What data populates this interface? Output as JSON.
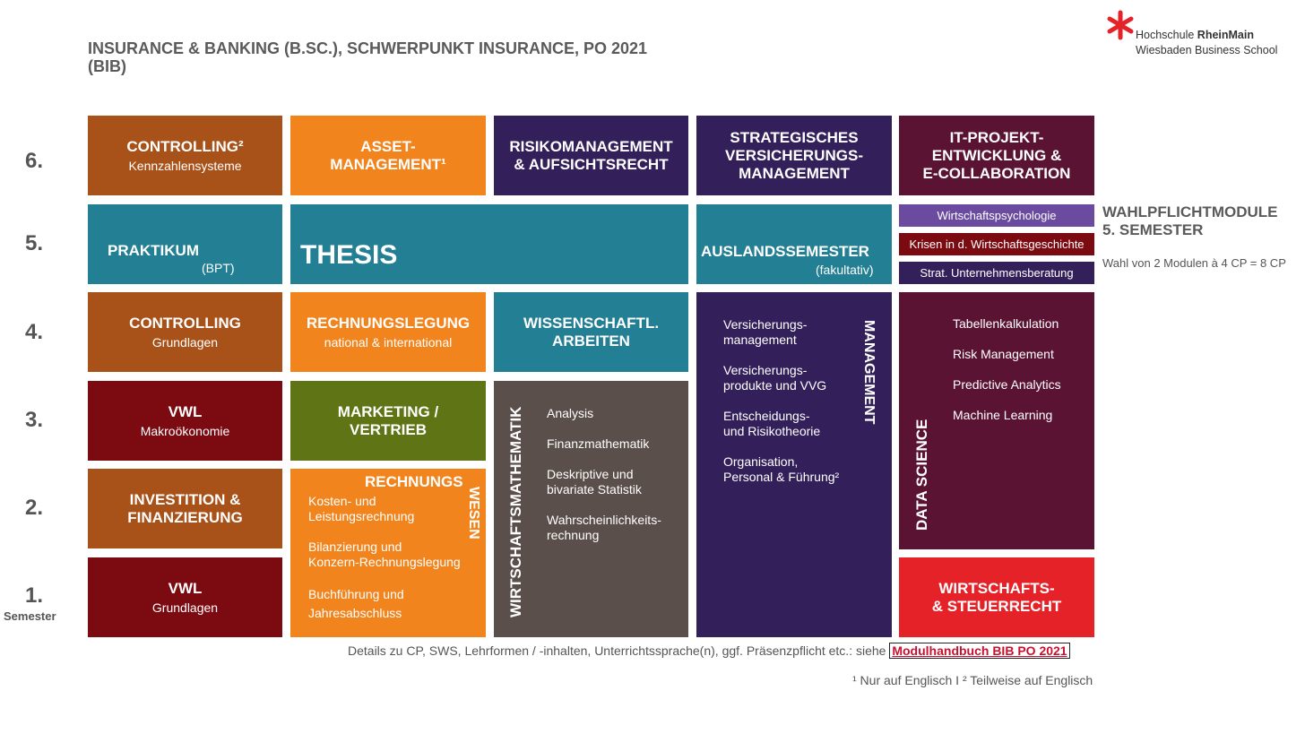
{
  "header": {
    "title_line1": "INSURANCE & BANKING (B.SC.), SCHWERPUNKT INSURANCE, PO 2021",
    "title_line2": "(BIB)",
    "logo_line1_a": "Hochschule ",
    "logo_line1_b": "RheinMain",
    "logo_line2": "Wiesbaden Business School"
  },
  "semesters": [
    "6.",
    "5.",
    "4.",
    "3.",
    "2.",
    "1."
  ],
  "semester_word": "Semester",
  "modules": {
    "controlling6": {
      "title": "CONTROLLING²",
      "sub": "Kennzahlensysteme"
    },
    "asset": {
      "title1": "ASSET-",
      "title2": "MANAGEMENT¹"
    },
    "risiko": {
      "title1": "RISIKOMANAGEMENT",
      "title2": "& AUFSICHTSRECHT"
    },
    "strat": {
      "title1": "STRATEGISCHES",
      "title2": "VERSICHERUNGS-",
      "title3": "MANAGEMENT"
    },
    "it": {
      "title1": "IT-PROJEKT-",
      "title2": "ENTWICKLUNG &",
      "title3": "E-COLLABORATION"
    },
    "praktikum": {
      "title": "PRAKTIKUM",
      "sub": "(BPT)"
    },
    "thesis": {
      "title": "THESIS"
    },
    "ausland": {
      "title": "AUSLANDSSEMESTER",
      "sub": "(fakultativ)"
    },
    "controlling4": {
      "title": "CONTROLLING",
      "sub": "Grundlagen"
    },
    "rechnungslegung": {
      "title": "RECHNUNGSLEGUNG",
      "sub": "national & international"
    },
    "wiss": {
      "title1": "WISSENSCHAFTL.",
      "title2": "ARBEITEN"
    },
    "vwl3": {
      "title": "VWL",
      "sub": "Makroökonomie"
    },
    "marketing": {
      "title1": "MARKETING /",
      "title2": "VERTRIEB"
    },
    "invest": {
      "title1": "INVESTITION &",
      "title2": "FINANZIERUNG"
    },
    "vwl1": {
      "title": "VWL",
      "sub": "Grundlagen"
    },
    "wirtschaftsrecht": {
      "title1": "WIRTSCHAFTS-",
      "title2": "& STEUERRECHT"
    },
    "rechnungswesen": {
      "title_a": "RECHNUNGS",
      "title_b": "WESEN",
      "items": [
        "Kosten- und",
        "Leistungsrechnung",
        "Bilanzierung und",
        "Konzern-Rechnungslegung",
        "Buchführung und",
        "Jahresabschluss"
      ]
    },
    "wima": {
      "title": "WIRTSCHAFTSMATHEMATIK",
      "items": [
        "Analysis",
        "Finanzmathematik",
        "Deskriptive und",
        "bivariate Statistik",
        "Wahrscheinlichkeits-",
        "rechnung"
      ]
    },
    "management": {
      "title": "MANAGEMENT",
      "items": [
        "Versicherungs-",
        "management",
        "Versicherungs-",
        "produkte und VVG",
        "Entscheidungs-",
        "und Risikotheorie",
        "Organisation,",
        "Personal & Führung²"
      ]
    },
    "datascience": {
      "title": "DATA SCIENCE",
      "items": [
        "Tabellenkalkulation",
        "Risk Management",
        "Predictive Analytics",
        "Machine Learning"
      ]
    }
  },
  "wahlpflicht": {
    "items": [
      "Wirtschaftspsychologie",
      "Krisen in d. Wirtschaftsgeschichte",
      "Strat. Unternehmensberatung"
    ],
    "colors": [
      "#6a4ba0",
      "#7b0a11",
      "#33205a"
    ],
    "title1": "WAHLPFLICHTMODULE",
    "title2": "5. SEMESTER",
    "sub": "Wahl von 2 Modulen à 4 CP = 8 CP"
  },
  "footer": {
    "details": "Details zu CP, SWS, Lehrformen / -inhalten, Unterrichtssprache(n), ggf. Präsenzpflicht etc.: siehe ",
    "link": "Modulhandbuch BIB PO 2021",
    "note": "¹ Nur auf Englisch I ² Teilweise auf Englisch"
  }
}
